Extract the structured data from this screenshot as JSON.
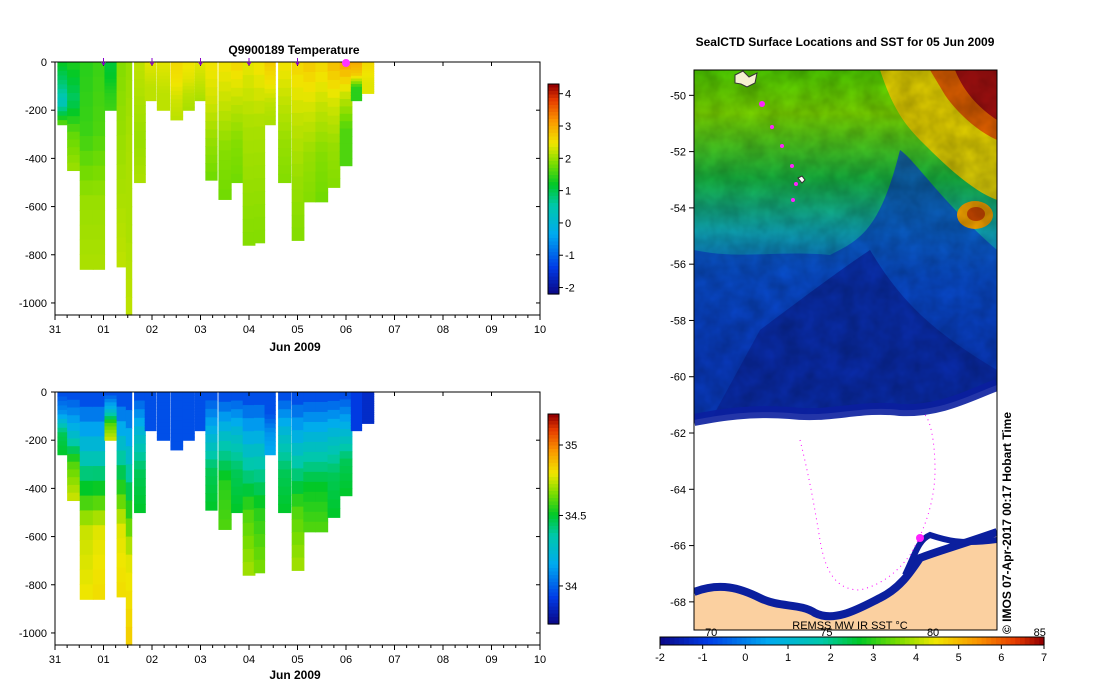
{
  "chart_data": [
    {
      "type": "heatmap",
      "title": "Q9900189  Temperature",
      "xlabel": "Jun 2009",
      "x_ticks": [
        "31",
        "01",
        "02",
        "03",
        "04",
        "05",
        "06",
        "07",
        "08",
        "09",
        "10"
      ],
      "xlim_days": [
        0,
        10
      ],
      "ylim": [
        -1050,
        0
      ],
      "y_ticks": [
        0,
        -200,
        -400,
        -600,
        -800,
        -1000
      ],
      "colorbar_ticks": [
        4,
        3,
        2,
        1,
        0,
        -1,
        -2
      ],
      "colorbar_range": [
        -2.2,
        4.3
      ],
      "profile_markers_days": [
        1,
        2,
        3,
        4,
        5,
        6
      ],
      "profiles": [
        {
          "day": 0.05,
          "w": 0.2,
          "depth": 260,
          "t": [
            1.2,
            0.8,
            0.3,
            1.6
          ]
        },
        {
          "day": 0.25,
          "w": 0.26,
          "depth": 450,
          "t": [
            1.3,
            0.9,
            1.7,
            2.0
          ]
        },
        {
          "day": 0.51,
          "w": 0.27,
          "depth": 860,
          "t": [
            1.4,
            1.5,
            2.0,
            2.1
          ]
        },
        {
          "day": 0.78,
          "w": 0.24,
          "depth": 860,
          "t": [
            1.5,
            1.6,
            2.0,
            2.1
          ]
        },
        {
          "day": 1.02,
          "w": 0.25,
          "depth": 200,
          "t": [
            1.1,
            1.2,
            1.4,
            1.5
          ]
        },
        {
          "day": 1.27,
          "w": 0.24,
          "depth": 850,
          "t": [
            1.9,
            2.0,
            2.1,
            2.2
          ]
        },
        {
          "day": 1.46,
          "w": 0.12,
          "depth": 1050,
          "t": [
            2.0,
            2.1,
            2.1,
            2.2
          ]
        },
        {
          "day": 1.63,
          "w": 0.23,
          "depth": 500,
          "t": [
            2.2,
            2.1,
            2.0,
            2.1
          ]
        },
        {
          "day": 1.85,
          "w": 0.23,
          "depth": 160,
          "t": [
            2.4,
            2.3,
            2.2,
            2.2
          ]
        },
        {
          "day": 2.1,
          "w": 0.26,
          "depth": 200,
          "t": [
            2.4,
            2.3,
            2.2,
            2.2
          ]
        },
        {
          "day": 2.38,
          "w": 0.25,
          "depth": 240,
          "t": [
            2.6,
            2.5,
            2.3,
            2.2
          ]
        },
        {
          "day": 2.63,
          "w": 0.24,
          "depth": 200,
          "t": [
            2.5,
            2.4,
            2.2,
            2.1
          ]
        },
        {
          "day": 2.88,
          "w": 0.25,
          "depth": 160,
          "t": [
            2.4,
            2.3,
            2.2,
            2.1
          ]
        },
        {
          "day": 3.1,
          "w": 0.24,
          "depth": 490,
          "t": [
            2.5,
            2.3,
            2.0,
            1.8
          ]
        },
        {
          "day": 3.37,
          "w": 0.26,
          "depth": 570,
          "t": [
            2.5,
            2.2,
            1.9,
            1.8
          ]
        },
        {
          "day": 3.63,
          "w": 0.25,
          "depth": 500,
          "t": [
            2.6,
            2.2,
            1.9,
            1.8
          ]
        },
        {
          "day": 3.87,
          "w": 0.25,
          "depth": 760,
          "t": [
            2.4,
            2.1,
            2.0,
            1.9
          ]
        },
        {
          "day": 4.1,
          "w": 0.22,
          "depth": 750,
          "t": [
            2.5,
            2.1,
            2.0,
            1.9
          ]
        },
        {
          "day": 4.32,
          "w": 0.22,
          "depth": 260,
          "t": [
            2.7,
            2.5,
            2.2,
            2.1
          ]
        },
        {
          "day": 4.6,
          "w": 0.26,
          "depth": 500,
          "t": [
            2.5,
            2.2,
            2.0,
            1.9
          ]
        },
        {
          "day": 4.88,
          "w": 0.25,
          "depth": 740,
          "t": [
            2.6,
            2.2,
            2.0,
            1.9
          ]
        },
        {
          "day": 5.12,
          "w": 0.25,
          "depth": 580,
          "t": [
            2.7,
            2.3,
            2.0,
            1.9
          ]
        },
        {
          "day": 5.37,
          "w": 0.25,
          "depth": 580,
          "t": [
            2.6,
            2.2,
            1.9,
            1.8
          ]
        },
        {
          "day": 5.62,
          "w": 0.25,
          "depth": 520,
          "t": [
            2.8,
            2.3,
            2.0,
            1.9
          ]
        },
        {
          "day": 5.87,
          "w": 0.25,
          "depth": 430,
          "t": [
            3.0,
            2.2,
            1.6,
            1.6
          ]
        },
        {
          "day": 6.1,
          "w": 0.22,
          "depth": 160,
          "t": [
            3.0,
            2.7,
            1.4,
            1.4
          ]
        },
        {
          "day": 6.33,
          "w": 0.24,
          "depth": 130,
          "t": [
            2.6,
            2.5,
            2.4,
            2.4
          ]
        }
      ]
    },
    {
      "type": "heatmap",
      "title": "",
      "xlabel": "Jun 2009",
      "x_ticks": [
        "31",
        "01",
        "02",
        "03",
        "04",
        "05",
        "06",
        "07",
        "08",
        "09",
        "10"
      ],
      "xlim_days": [
        0,
        10
      ],
      "ylim": [
        -1050,
        0
      ],
      "y_ticks": [
        0,
        -200,
        -400,
        -600,
        -800,
        -1000
      ],
      "colorbar_ticks": [
        35,
        34.5,
        34
      ],
      "colorbar_range": [
        33.73,
        35.22
      ],
      "profiles": [
        {
          "day": 0.05,
          "w": 0.2,
          "depth": 260,
          "t": [
            33.95,
            34.1,
            34.45,
            34.5
          ]
        },
        {
          "day": 0.25,
          "w": 0.26,
          "depth": 450,
          "t": [
            33.95,
            34.2,
            34.6,
            34.75
          ]
        },
        {
          "day": 0.51,
          "w": 0.27,
          "depth": 860,
          "t": [
            33.95,
            34.35,
            34.75,
            34.8
          ]
        },
        {
          "day": 0.78,
          "w": 0.24,
          "depth": 860,
          "t": [
            33.95,
            34.35,
            34.78,
            34.82
          ]
        },
        {
          "day": 1.02,
          "w": 0.25,
          "depth": 200,
          "t": [
            33.95,
            34.2,
            34.6,
            34.75
          ]
        },
        {
          "day": 1.27,
          "w": 0.24,
          "depth": 850,
          "t": [
            33.95,
            34.4,
            34.78,
            34.82
          ]
        },
        {
          "day": 1.46,
          "w": 0.12,
          "depth": 1050,
          "t": [
            33.95,
            34.4,
            34.78,
            34.85
          ]
        },
        {
          "day": 1.63,
          "w": 0.23,
          "depth": 500,
          "t": [
            33.95,
            34.25,
            34.45,
            34.5
          ]
        },
        {
          "day": 1.85,
          "w": 0.23,
          "depth": 160,
          "t": [
            33.95,
            33.95,
            33.95,
            33.95
          ]
        },
        {
          "day": 2.1,
          "w": 0.26,
          "depth": 200,
          "t": [
            33.95,
            33.95,
            33.95,
            33.95
          ]
        },
        {
          "day": 2.38,
          "w": 0.25,
          "depth": 240,
          "t": [
            33.95,
            33.95,
            33.95,
            33.95
          ]
        },
        {
          "day": 2.63,
          "w": 0.24,
          "depth": 200,
          "t": [
            33.95,
            33.95,
            33.95,
            33.95
          ]
        },
        {
          "day": 2.88,
          "w": 0.25,
          "depth": 160,
          "t": [
            33.95,
            33.95,
            33.95,
            33.95
          ]
        },
        {
          "day": 3.1,
          "w": 0.24,
          "depth": 490,
          "t": [
            33.95,
            34.2,
            34.45,
            34.5
          ]
        },
        {
          "day": 3.37,
          "w": 0.26,
          "depth": 570,
          "t": [
            33.95,
            34.3,
            34.55,
            34.6
          ]
        },
        {
          "day": 3.63,
          "w": 0.25,
          "depth": 500,
          "t": [
            33.95,
            34.25,
            34.45,
            34.5
          ]
        },
        {
          "day": 3.87,
          "w": 0.25,
          "depth": 760,
          "t": [
            33.95,
            34.3,
            34.6,
            34.7
          ]
        },
        {
          "day": 4.1,
          "w": 0.22,
          "depth": 750,
          "t": [
            33.95,
            34.3,
            34.55,
            34.65
          ]
        },
        {
          "day": 4.32,
          "w": 0.22,
          "depth": 260,
          "t": [
            33.95,
            33.95,
            34.1,
            34.15
          ]
        },
        {
          "day": 4.6,
          "w": 0.26,
          "depth": 500,
          "t": [
            33.95,
            34.25,
            34.45,
            34.5
          ]
        },
        {
          "day": 4.88,
          "w": 0.25,
          "depth": 740,
          "t": [
            33.95,
            34.3,
            34.6,
            34.7
          ]
        },
        {
          "day": 5.12,
          "w": 0.25,
          "depth": 580,
          "t": [
            33.95,
            34.25,
            34.5,
            34.6
          ]
        },
        {
          "day": 5.37,
          "w": 0.25,
          "depth": 580,
          "t": [
            33.95,
            34.25,
            34.5,
            34.6
          ]
        },
        {
          "day": 5.62,
          "w": 0.25,
          "depth": 520,
          "t": [
            33.95,
            34.25,
            34.45,
            34.5
          ]
        },
        {
          "day": 5.87,
          "w": 0.25,
          "depth": 430,
          "t": [
            33.95,
            34.2,
            34.45,
            34.5
          ]
        },
        {
          "day": 6.1,
          "w": 0.22,
          "depth": 160,
          "t": [
            33.9,
            33.9,
            33.9,
            33.9
          ]
        },
        {
          "day": 6.33,
          "w": 0.24,
          "depth": 130,
          "t": [
            33.85,
            33.85,
            33.85,
            33.85
          ]
        }
      ]
    },
    {
      "type": "heatmap",
      "title": "SealCTD Surface Locations and SST for 05 Jun 2009",
      "y_ticks": [
        -50,
        -52,
        -54,
        -56,
        -58,
        -60,
        -62,
        -64,
        -66,
        -68
      ],
      "ylim": [
        -69,
        -49.1
      ],
      "colorbar_ticks": [
        -2,
        -1,
        0,
        1,
        2,
        3,
        4,
        5,
        6,
        7
      ],
      "colorbar_range": [
        -2,
        7
      ],
      "colorbar_secondary_ticks": [
        {
          "label": "70",
          "at": -0.8
        },
        {
          "label": "75",
          "at": 1.9
        },
        {
          "label": "80",
          "at": 4.4
        },
        {
          "label": "85",
          "at": 6.9
        }
      ],
      "source_label": "REMSS MW IR SST °C",
      "credit": "© IMOS 07-Apr-2017 00:17 Hobart Time",
      "legend": "none"
    }
  ]
}
